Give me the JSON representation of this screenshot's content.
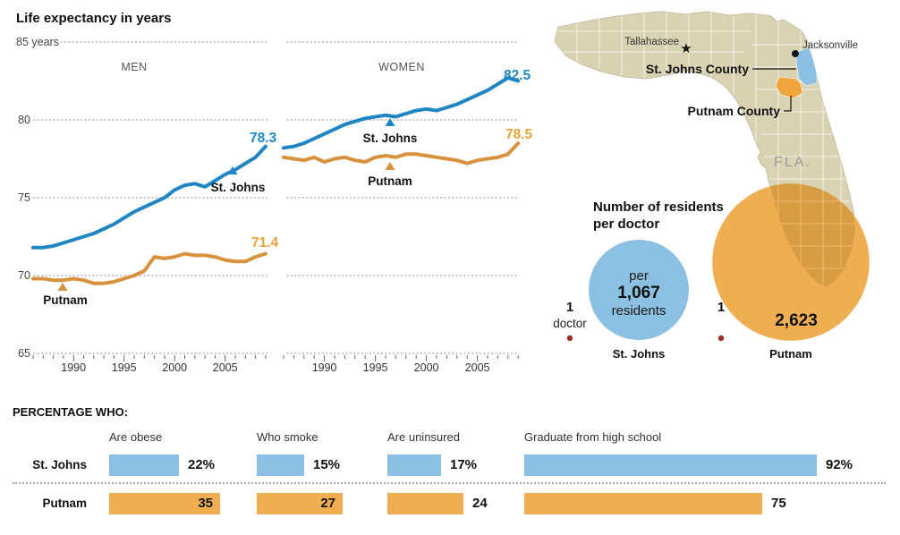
{
  "title": "Life expectancy in years",
  "colors": {
    "blue_line": "#1f86c3",
    "orange_line": "#d8923d",
    "blue_fill": "#8cc0e2",
    "orange_fill": "#f0ae52",
    "orange_value_label": "#e9a33c",
    "map_beige": "#d9d3b4",
    "red_dot": "#9e2f26"
  },
  "map": {
    "state_label": "FLA.",
    "cities": [
      {
        "name": "Tallahassee",
        "marker": "star-icon"
      },
      {
        "name": "Jacksonville",
        "marker": "dot-icon"
      }
    ],
    "county_labels": [
      "St. Johns County",
      "Putnam County"
    ]
  },
  "chart_data": [
    {
      "type": "line",
      "panel": "MEN",
      "x": [
        1986,
        1987,
        1988,
        1989,
        1990,
        1991,
        1992,
        1993,
        1994,
        1995,
        1996,
        1997,
        1998,
        1999,
        2000,
        2001,
        2002,
        2003,
        2004,
        2005,
        2006,
        2007,
        2008,
        2009
      ],
      "series": [
        {
          "name": "St. Johns",
          "color": "#1f86c3",
          "end_label": "78.3",
          "values": [
            71.8,
            71.8,
            71.9,
            72.1,
            72.3,
            72.5,
            72.7,
            73.0,
            73.3,
            73.7,
            74.1,
            74.4,
            74.7,
            75.0,
            75.5,
            75.8,
            75.9,
            75.7,
            76.1,
            76.5,
            76.8,
            77.2,
            77.6,
            78.3
          ]
        },
        {
          "name": "Putnam",
          "color": "#d8923d",
          "end_label": "71.4",
          "values": [
            69.8,
            69.8,
            69.7,
            69.7,
            69.8,
            69.7,
            69.5,
            69.5,
            69.6,
            69.8,
            70.0,
            70.3,
            71.2,
            71.1,
            71.2,
            71.4,
            71.3,
            71.3,
            71.2,
            71.0,
            70.9,
            70.9,
            71.2,
            71.4
          ]
        }
      ],
      "ylim": [
        65,
        85
      ],
      "yticks": [
        "85 years",
        "80",
        "75",
        "70",
        "65"
      ],
      "xticks": [
        1990,
        1995,
        2000,
        2005
      ],
      "grid": "dotted"
    },
    {
      "type": "line",
      "panel": "WOMEN",
      "x": [
        1986,
        1987,
        1988,
        1989,
        1990,
        1991,
        1992,
        1993,
        1994,
        1995,
        1996,
        1997,
        1998,
        1999,
        2000,
        2001,
        2002,
        2003,
        2004,
        2005,
        2006,
        2007,
        2008,
        2009
      ],
      "series": [
        {
          "name": "St. Johns",
          "color": "#1f86c3",
          "end_label": "82.5",
          "values": [
            78.2,
            78.3,
            78.5,
            78.8,
            79.1,
            79.4,
            79.7,
            79.9,
            80.1,
            80.2,
            80.3,
            80.2,
            80.4,
            80.6,
            80.7,
            80.6,
            80.8,
            81.0,
            81.3,
            81.6,
            81.9,
            82.3,
            82.7,
            82.5
          ]
        },
        {
          "name": "Putnam",
          "color": "#d8923d",
          "end_label": "78.5",
          "values": [
            77.6,
            77.5,
            77.4,
            77.6,
            77.3,
            77.5,
            77.6,
            77.4,
            77.3,
            77.6,
            77.7,
            77.6,
            77.8,
            77.8,
            77.7,
            77.6,
            77.5,
            77.4,
            77.2,
            77.4,
            77.5,
            77.6,
            77.8,
            78.5
          ]
        }
      ],
      "ylim": [
        65,
        85
      ],
      "xticks": [
        1990,
        1995,
        2000,
        2005
      ],
      "grid": "dotted"
    },
    {
      "type": "bar",
      "title": "PERCENTAGE WHO:",
      "categories": [
        "Are obese",
        "Who smoke",
        "Are uninsured",
        "Graduate from high school"
      ],
      "series": [
        {
          "name": "St. Johns",
          "color": "#8cc0e2",
          "values": [
            22,
            15,
            17,
            92
          ],
          "labels": [
            "22%",
            "15%",
            "17%",
            "92%"
          ],
          "label_inside": [
            false,
            false,
            false,
            false
          ]
        },
        {
          "name": "Putnam",
          "color": "#f0ae52",
          "values": [
            35,
            27,
            24,
            75
          ],
          "labels": [
            "35",
            "27",
            "24",
            "75"
          ],
          "label_inside": [
            true,
            true,
            false,
            false
          ]
        }
      ]
    },
    {
      "type": "bubble",
      "title_lines": [
        "Number of residents",
        "per doctor"
      ],
      "circle_texts": [
        "per",
        "1,067",
        "residents"
      ],
      "unit_labels": {
        "one": "1",
        "doctor": "doctor"
      },
      "items": [
        {
          "name": "St. Johns",
          "value": 1067,
          "value_label": "1,067",
          "color": "#8cc0e2"
        },
        {
          "name": "Putnam",
          "value": 2623,
          "value_label": "2,623",
          "color": "#f0ae52"
        }
      ]
    }
  ]
}
